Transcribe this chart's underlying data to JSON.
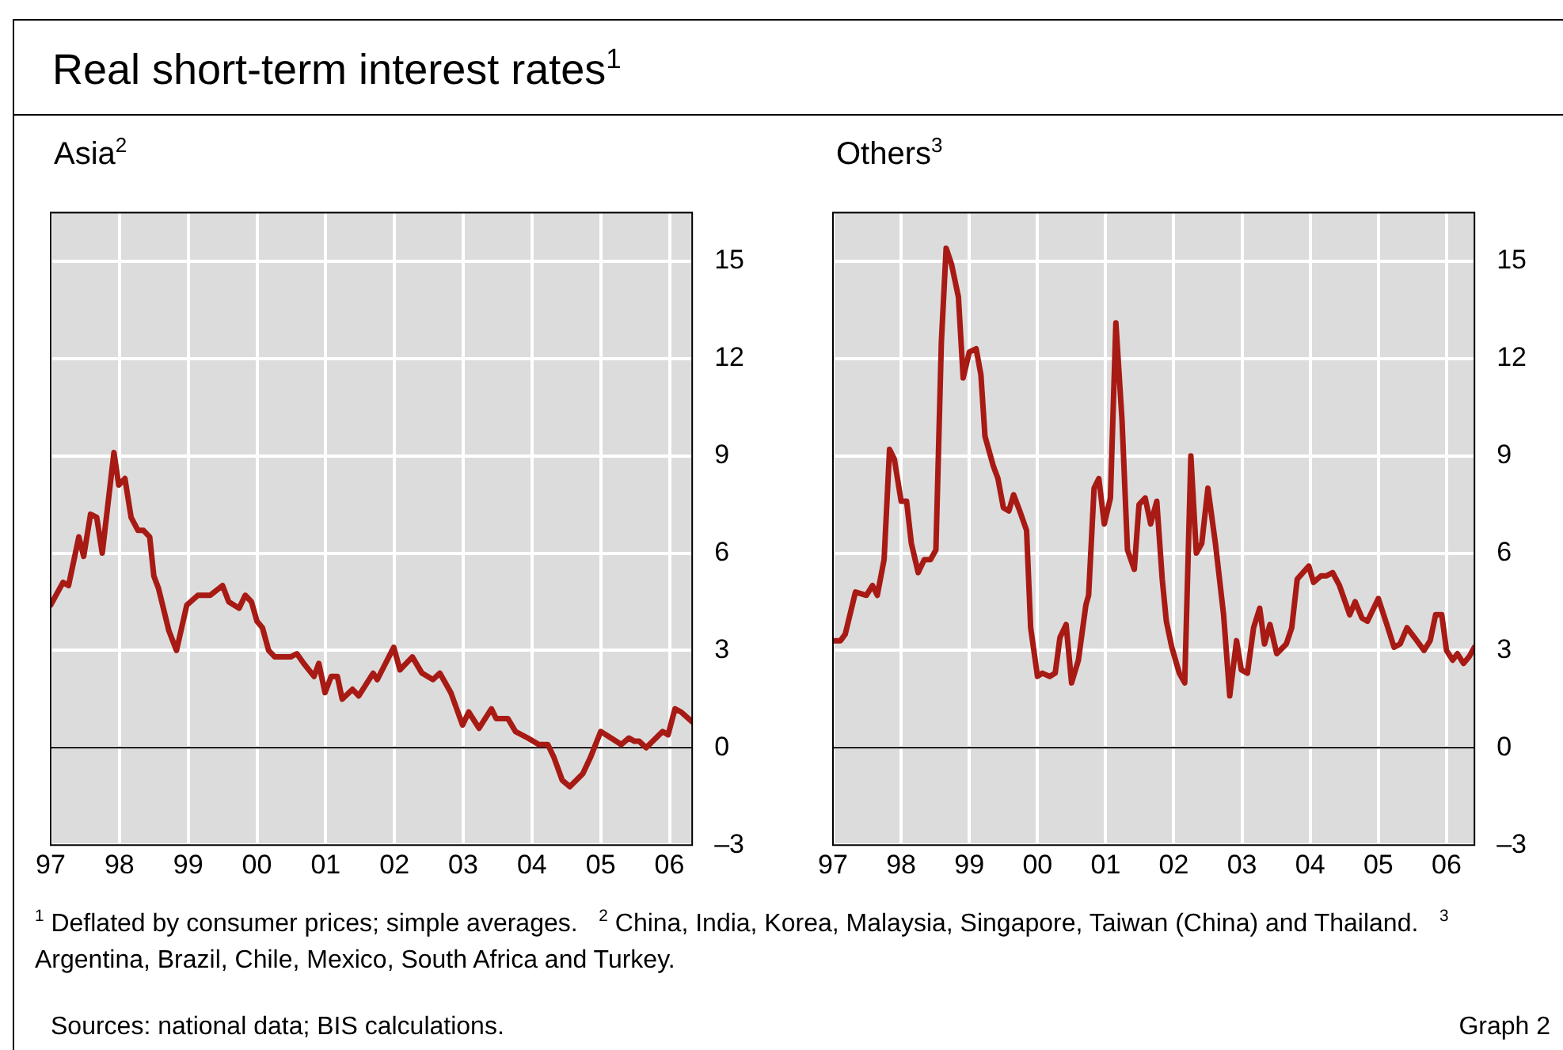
{
  "chart_data": [
    {
      "type": "line",
      "title": "Asia$^{2}$",
      "color": "#a81a14",
      "marker": "none",
      "grid": true,
      "x": [
        1997.0,
        1997.18,
        1997.26,
        1997.41,
        1997.48,
        1997.58,
        1997.67,
        1997.75,
        1997.92,
        1997.99,
        1998.08,
        1998.17,
        1998.27,
        1998.35,
        1998.44,
        1998.5,
        1998.57,
        1998.72,
        1998.83,
        1998.98,
        1999.14,
        1999.32,
        1999.5,
        1999.59,
        1999.74,
        1999.83,
        1999.92,
        2000.0,
        2000.08,
        2000.17,
        2000.26,
        2000.41,
        2000.49,
        2000.58,
        2000.68,
        2000.83,
        2000.9,
        2000.99,
        2001.08,
        2001.17,
        2001.24,
        2001.39,
        2001.48,
        2001.69,
        2001.75,
        2001.99,
        2002.08,
        2002.26,
        2002.4,
        2002.56,
        2002.66,
        2002.82,
        2002.99,
        2003.08,
        2003.23,
        2003.41,
        2003.48,
        2003.65,
        2003.76,
        2003.94,
        2004.1,
        2004.23,
        2004.32,
        2004.44,
        2004.55,
        2004.74,
        2004.85,
        2005.0,
        2005.15,
        2005.3,
        2005.41,
        2005.49,
        2005.56,
        2005.66,
        2005.9,
        2005.98,
        2006.08,
        2006.17,
        2006.33
      ],
      "values": [
        4.4,
        5.1,
        5.0,
        6.5,
        5.9,
        7.2,
        7.1,
        6.0,
        9.1,
        8.1,
        8.3,
        7.1,
        6.7,
        6.7,
        6.5,
        5.3,
        4.9,
        3.6,
        3.0,
        4.4,
        4.7,
        4.7,
        5.0,
        4.5,
        4.3,
        4.7,
        4.5,
        3.9,
        3.7,
        3.0,
        2.8,
        2.8,
        2.8,
        2.9,
        2.6,
        2.2,
        2.6,
        1.7,
        2.2,
        2.2,
        1.5,
        1.8,
        1.6,
        2.3,
        2.1,
        3.1,
        2.4,
        2.8,
        2.3,
        2.1,
        2.3,
        1.7,
        0.7,
        1.1,
        0.6,
        1.2,
        0.9,
        0.9,
        0.5,
        0.3,
        0.1,
        0.1,
        -0.3,
        -1.0,
        -1.2,
        -0.8,
        -0.3,
        0.5,
        0.3,
        0.1,
        0.3,
        0.2,
        0.2,
        0.0,
        0.5,
        0.4,
        1.2,
        1.1,
        0.8
      ],
      "xlim": [
        1997,
        2006.33
      ],
      "ylim": [
        -3,
        16.5
      ],
      "xticks": [
        {
          "value": 1997,
          "label": "97"
        },
        {
          "value": 1998,
          "label": "98"
        },
        {
          "value": 1999,
          "label": "99"
        },
        {
          "value": 2000,
          "label": "00"
        },
        {
          "value": 2001,
          "label": "01"
        },
        {
          "value": 2002,
          "label": "02"
        },
        {
          "value": 2003,
          "label": "03"
        },
        {
          "value": 2004,
          "label": "04"
        },
        {
          "value": 2005,
          "label": "05"
        },
        {
          "value": 2006,
          "label": "06"
        }
      ],
      "yticks": [
        {
          "value": -3,
          "label": "–3"
        },
        0,
        3,
        6,
        9,
        12,
        15
      ],
      "ref_lines": [
        {
          "axis": "y",
          "value": 0,
          "color": "#000000"
        }
      ]
    },
    {
      "type": "line",
      "title": "Others$^{3}$",
      "color": "#a81a14",
      "marker": "none",
      "grid": true,
      "x": [
        1997.0,
        1997.11,
        1997.18,
        1997.33,
        1997.49,
        1997.58,
        1997.65,
        1997.75,
        1997.83,
        1997.9,
        1998.0,
        1998.08,
        1998.15,
        1998.25,
        1998.34,
        1998.43,
        1998.51,
        1998.59,
        1998.66,
        1998.74,
        1998.84,
        1998.91,
        1999.0,
        1999.1,
        1999.17,
        1999.23,
        1999.35,
        1999.42,
        1999.5,
        1999.58,
        1999.65,
        1999.74,
        1999.84,
        1999.9,
        2000.0,
        2000.07,
        2000.18,
        2000.26,
        2000.33,
        2000.42,
        2000.5,
        2000.6,
        2000.71,
        2000.75,
        2000.83,
        2000.9,
        2000.98,
        2001.07,
        2001.15,
        2001.24,
        2001.32,
        2001.42,
        2001.49,
        2001.58,
        2001.66,
        2001.75,
        2001.83,
        2001.89,
        2001.97,
        2002.08,
        2002.16,
        2002.25,
        2002.33,
        2002.41,
        2002.5,
        2002.61,
        2002.73,
        2002.82,
        2002.92,
        2002.99,
        2003.08,
        2003.17,
        2003.26,
        2003.33,
        2003.41,
        2003.51,
        2003.65,
        2003.73,
        2003.81,
        2003.98,
        2004.05,
        2004.16,
        2004.24,
        2004.33,
        2004.43,
        2004.58,
        2004.66,
        2004.76,
        2004.84,
        2005.0,
        2005.14,
        2005.23,
        2005.32,
        2005.42,
        2005.53,
        2005.67,
        2005.76,
        2005.84,
        2005.93,
        2006.0,
        2006.09,
        2006.16,
        2006.25,
        2006.33,
        2006.41
      ],
      "values": [
        3.3,
        3.3,
        3.5,
        4.8,
        4.7,
        5.0,
        4.7,
        5.8,
        9.2,
        8.9,
        7.6,
        7.6,
        6.3,
        5.4,
        5.8,
        5.8,
        6.1,
        12.5,
        15.4,
        14.9,
        13.9,
        11.4,
        12.2,
        12.3,
        11.5,
        9.6,
        8.7,
        8.3,
        7.4,
        7.3,
        7.8,
        7.3,
        6.7,
        3.7,
        2.2,
        2.3,
        2.2,
        2.3,
        3.4,
        3.8,
        2.0,
        2.7,
        4.4,
        4.7,
        8.0,
        8.3,
        6.9,
        7.7,
        13.1,
        10.1,
        6.1,
        5.5,
        7.5,
        7.7,
        6.9,
        7.6,
        5.2,
        3.9,
        3.1,
        2.3,
        2.0,
        9.0,
        6.0,
        6.3,
        8.0,
        6.3,
        4.1,
        1.6,
        3.3,
        2.4,
        2.3,
        3.7,
        4.3,
        3.2,
        3.8,
        2.9,
        3.2,
        3.7,
        5.2,
        5.6,
        5.1,
        5.3,
        5.3,
        5.4,
        5.0,
        4.1,
        4.5,
        4.0,
        3.9,
        4.6,
        3.7,
        3.1,
        3.2,
        3.7,
        3.4,
        3.0,
        3.3,
        4.1,
        4.1,
        3.0,
        2.7,
        2.9,
        2.6,
        2.8,
        3.1
      ],
      "xlim": [
        1997,
        2006.41
      ],
      "ylim": [
        -3,
        16.5
      ],
      "xticks": [
        {
          "value": 1997,
          "label": "97"
        },
        {
          "value": 1998,
          "label": "98"
        },
        {
          "value": 1999,
          "label": "99"
        },
        {
          "value": 2000,
          "label": "00"
        },
        {
          "value": 2001,
          "label": "01"
        },
        {
          "value": 2002,
          "label": "02"
        },
        {
          "value": 2003,
          "label": "03"
        },
        {
          "value": 2004,
          "label": "04"
        },
        {
          "value": 2005,
          "label": "05"
        },
        {
          "value": 2006,
          "label": "06"
        }
      ],
      "yticks": [
        {
          "value": -3,
          "label": "–3"
        },
        0,
        3,
        6,
        9,
        12,
        15
      ],
      "ref_lines": [
        {
          "axis": "y",
          "value": 0,
          "color": "#000000"
        }
      ]
    },
    {
      "type": "other",
      "title": "Real short-term interest rates$^{1}$",
      "annotations": [
        "$^{1}$ Deflated by consumer prices; simple averages.",
        "$^{2}$ China, India, Korea, Malaysia, Singapore, Taiwan (China) and Thailand.",
        "$^{3}$ Argentina, Brazil, Chile, Mexico, South Africa and Turkey.",
        "Sources: national data; BIS calculations.",
        "Graph 2"
      ]
    }
  ]
}
